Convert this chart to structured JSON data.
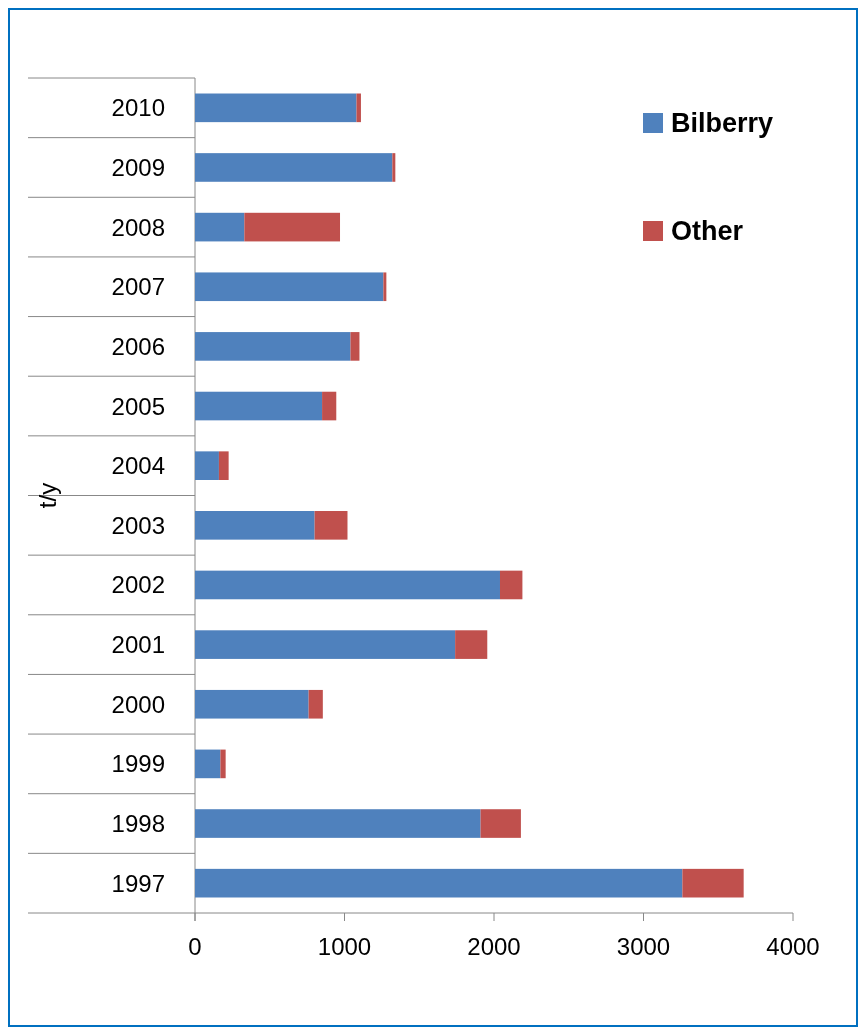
{
  "chart_data": {
    "type": "bar",
    "orientation": "horizontal",
    "stacked": true,
    "ylabel": "t/y",
    "categories": [
      "2010",
      "2009",
      "2008",
      "2007",
      "2006",
      "2005",
      "2004",
      "2003",
      "2002",
      "2001",
      "2000",
      "1999",
      "1998",
      "1997"
    ],
    "series": [
      {
        "name": "Bilberry",
        "color": "#4f81bd",
        "values": [
          1080,
          1320,
          330,
          1260,
          1040,
          850,
          160,
          800,
          2040,
          1740,
          760,
          170,
          1910,
          3260
        ]
      },
      {
        "name": "Other",
        "color": "#c0504d",
        "values": [
          30,
          20,
          640,
          20,
          60,
          95,
          65,
          220,
          150,
          215,
          95,
          35,
          270,
          410
        ]
      }
    ],
    "xlim": [
      0,
      4000
    ],
    "xticks": [
      0,
      1000,
      2000,
      3000,
      4000
    ],
    "legend": "top right"
  }
}
